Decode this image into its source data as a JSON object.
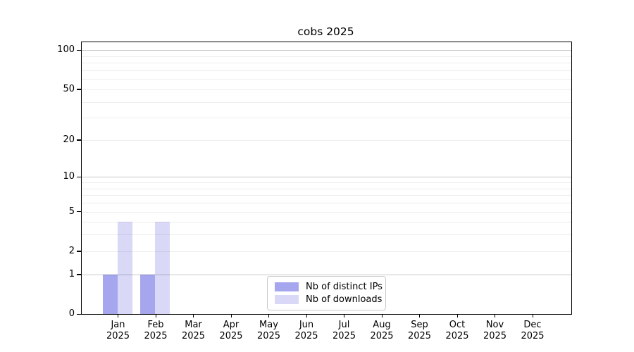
{
  "chart_data": {
    "type": "bar",
    "title": "cobs 2025",
    "categories": [
      "Jan",
      "Feb",
      "Mar",
      "Apr",
      "May",
      "Jun",
      "Jul",
      "Aug",
      "Sep",
      "Oct",
      "Nov",
      "Dec"
    ],
    "year_label": "2025",
    "series": [
      {
        "name": "Nb of distinct IPs",
        "color": "#a6a6ee",
        "values": [
          1,
          1,
          0,
          0,
          0,
          0,
          0,
          0,
          0,
          0,
          0,
          0
        ]
      },
      {
        "name": "Nb of downloads",
        "color": "#d9d9f7",
        "values": [
          4,
          4,
          0,
          0,
          0,
          0,
          0,
          0,
          0,
          0,
          0,
          0
        ]
      }
    ],
    "y_ticks": [
      0,
      1,
      2,
      5,
      10,
      20,
      50,
      100
    ],
    "y_minor_gridlines": [
      2,
      3,
      4,
      5,
      6,
      7,
      8,
      9,
      20,
      30,
      40,
      50,
      60,
      70,
      80,
      90
    ],
    "y_major_gridlines": [
      1,
      10,
      100
    ],
    "y_scale": "log1p",
    "ylim": [
      0,
      115
    ],
    "xlabel": "",
    "ylabel": "",
    "grid": true,
    "legend_position": "lower center"
  }
}
